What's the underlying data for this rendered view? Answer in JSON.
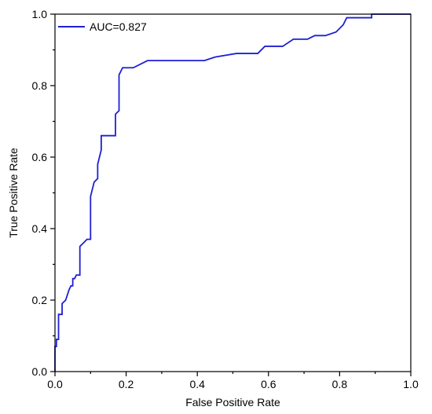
{
  "chart_data": {
    "type": "line",
    "xlabel": "False Positive Rate",
    "ylabel": "True Positive Rate",
    "xlim": [
      0,
      1
    ],
    "ylim": [
      0,
      1
    ],
    "xticks": [
      "0.0",
      "0.2",
      "0.4",
      "0.6",
      "0.8",
      "1.0"
    ],
    "yticks": [
      "0.0",
      "0.2",
      "0.4",
      "0.6",
      "0.8",
      "1.0"
    ],
    "grid": false,
    "legend_position": "top-left",
    "series": [
      {
        "name": "AUC=0.827",
        "color": "#1f1fd6",
        "x": [
          0.0,
          0.0,
          0.004,
          0.004,
          0.01,
          0.01,
          0.02,
          0.02,
          0.03,
          0.04,
          0.045,
          0.05,
          0.05,
          0.055,
          0.06,
          0.07,
          0.07,
          0.09,
          0.1,
          0.1,
          0.11,
          0.12,
          0.12,
          0.13,
          0.13,
          0.14,
          0.17,
          0.17,
          0.18,
          0.18,
          0.19,
          0.22,
          0.26,
          0.42,
          0.45,
          0.51,
          0.57,
          0.59,
          0.64,
          0.67,
          0.71,
          0.73,
          0.76,
          0.79,
          0.81,
          0.82,
          0.89,
          0.89,
          1.0
        ],
        "y": [
          0.0,
          0.07,
          0.07,
          0.09,
          0.09,
          0.16,
          0.16,
          0.19,
          0.2,
          0.23,
          0.24,
          0.24,
          0.26,
          0.26,
          0.27,
          0.27,
          0.35,
          0.37,
          0.37,
          0.49,
          0.53,
          0.54,
          0.58,
          0.62,
          0.66,
          0.66,
          0.66,
          0.72,
          0.73,
          0.83,
          0.85,
          0.85,
          0.87,
          0.87,
          0.88,
          0.89,
          0.89,
          0.91,
          0.91,
          0.93,
          0.93,
          0.94,
          0.94,
          0.95,
          0.97,
          0.99,
          0.99,
          1.0,
          1.0
        ]
      }
    ]
  }
}
